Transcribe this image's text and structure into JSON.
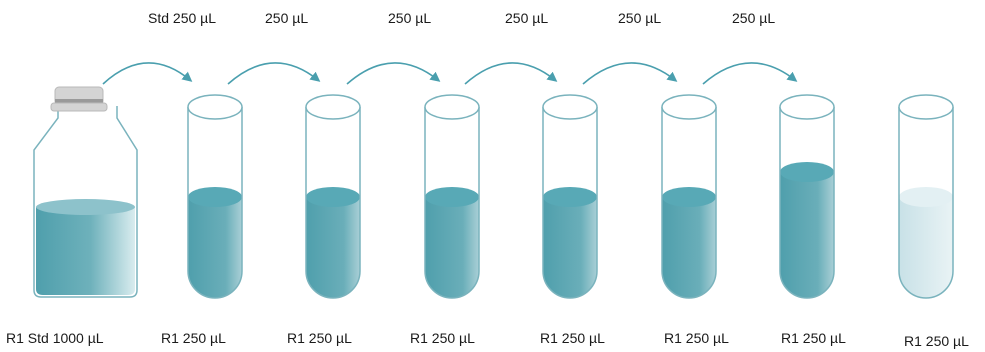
{
  "transfer_labels": [
    "Std 250 µL",
    "250 µL",
    "250 µL",
    "250 µL",
    "250 µL",
    "250 µL"
  ],
  "container_labels": [
    "R1 Std 1000 µL",
    "R1 250 µL",
    "R1 250 µL",
    "R1 250 µL",
    "R1 250 µL",
    "R1 250 µL",
    "R1 250 µL",
    "R1 250 µL"
  ],
  "colors": {
    "liquid_dark": "#5aaab5",
    "liquid_top": "#58a9b6",
    "liquid_pale": "#d4e9ee",
    "arrow": "#4a9fae",
    "outline": "#7ab3bd",
    "cap": "#d4d4d4"
  }
}
